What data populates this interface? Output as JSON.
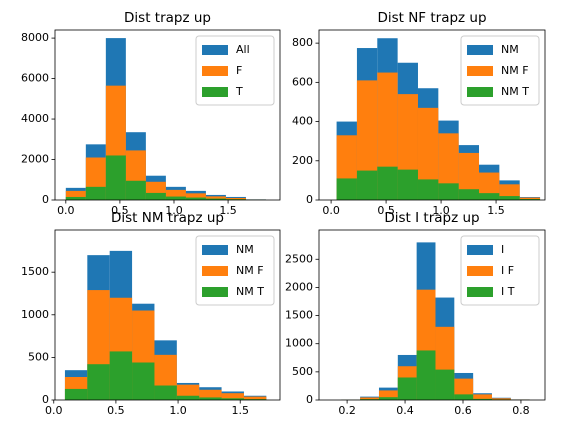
{
  "chart_data": [
    {
      "type": "histogram",
      "title": "Dist trapz up",
      "bins": [
        0,
        0.185,
        0.37,
        0.555,
        0.74,
        0.925,
        1.11,
        1.295,
        1.48,
        1.665,
        1.85
      ],
      "series": [
        {
          "name": "All",
          "color": "#1f77b4",
          "values": [
            600,
            2750,
            8000,
            3350,
            1200,
            650,
            450,
            250,
            150,
            30
          ]
        },
        {
          "name": "F",
          "color": "#ff7f0e",
          "values": [
            450,
            2100,
            5650,
            2450,
            900,
            500,
            330,
            180,
            100,
            20
          ]
        },
        {
          "name": "T",
          "color": "#2ca02c",
          "values": [
            150,
            650,
            2200,
            950,
            350,
            170,
            120,
            70,
            40,
            10
          ]
        }
      ],
      "xlim": [
        -0.1,
        1.98
      ],
      "ylim": [
        0,
        8400
      ],
      "xticks": [
        {
          "value": 0,
          "label": "0.0"
        },
        0.5,
        {
          "value": 1,
          "label": "1.0"
        },
        1.5
      ],
      "yticks": [
        0,
        2000,
        4000,
        6000,
        8000
      ],
      "legend": "upper right"
    },
    {
      "type": "histogram",
      "title": "Dist NF trapz up",
      "bins": [
        0.05,
        0.235,
        0.42,
        0.605,
        0.79,
        0.975,
        1.16,
        1.345,
        1.53,
        1.715,
        1.9
      ],
      "series": [
        {
          "name": "NM",
          "color": "#1f77b4",
          "values": [
            400,
            775,
            825,
            700,
            570,
            405,
            280,
            180,
            100,
            15
          ]
        },
        {
          "name": "NM F",
          "color": "#ff7f0e",
          "values": [
            330,
            610,
            650,
            540,
            470,
            340,
            240,
            140,
            80,
            12
          ]
        },
        {
          "name": "NM T",
          "color": "#2ca02c",
          "values": [
            110,
            150,
            170,
            155,
            105,
            85,
            55,
            35,
            20,
            5
          ]
        }
      ],
      "xlim": [
        -0.11,
        1.945
      ],
      "ylim": [
        0,
        867
      ],
      "xticks": [
        {
          "value": 0,
          "label": "0.0"
        },
        0.5,
        {
          "value": 1,
          "label": "1.0"
        },
        1.5
      ],
      "yticks": [
        0,
        200,
        400,
        600,
        800
      ],
      "legend": "upper right"
    },
    {
      "type": "histogram",
      "title": "Dist NM trapz up",
      "bins": [
        0.09,
        0.27,
        0.45,
        0.63,
        0.81,
        0.99,
        1.17,
        1.35,
        1.53,
        1.71
      ],
      "series": [
        {
          "name": "NM",
          "color": "#1f77b4",
          "values": [
            350,
            1700,
            1750,
            1130,
            700,
            200,
            150,
            100,
            50
          ]
        },
        {
          "name": "NM F",
          "color": "#ff7f0e",
          "values": [
            270,
            1290,
            1200,
            1050,
            530,
            180,
            120,
            80,
            40
          ]
        },
        {
          "name": "NM T",
          "color": "#2ca02c",
          "values": [
            130,
            420,
            570,
            440,
            170,
            50,
            30,
            20,
            10
          ]
        }
      ],
      "xlim": [
        0.01,
        1.82
      ],
      "ylim": [
        0,
        1995
      ],
      "xticks": [
        {
          "value": 0,
          "label": "0.0"
        },
        0.5,
        {
          "value": 1,
          "label": "1.0"
        },
        1.5
      ],
      "yticks": [
        0,
        500,
        1000,
        1500
      ],
      "legend": "upper right"
    },
    {
      "type": "histogram",
      "title": "Dist I trapz up",
      "bins": [
        0.18,
        0.245,
        0.31,
        0.375,
        0.44,
        0.505,
        0.57,
        0.635,
        0.7,
        0.765,
        0.83
      ],
      "series": [
        {
          "name": "I",
          "color": "#1f77b4",
          "values": [
            5,
            60,
            220,
            800,
            2800,
            1820,
            480,
            120,
            40,
            10
          ]
        },
        {
          "name": "I F",
          "color": "#ff7f0e",
          "values": [
            3,
            45,
            170,
            600,
            1960,
            1300,
            380,
            100,
            30,
            8
          ]
        },
        {
          "name": "I T",
          "color": "#2ca02c",
          "values": [
            2,
            15,
            50,
            400,
            880,
            540,
            100,
            20,
            10,
            2
          ]
        }
      ],
      "xlim": [
        0.103,
        0.883
      ],
      "ylim": [
        0,
        3020
      ],
      "xticks": [
        0.2,
        0.4,
        0.6,
        0.8
      ],
      "yticks": [
        0,
        500,
        1000,
        1500,
        2000,
        2500
      ],
      "legend": "upper right"
    }
  ]
}
